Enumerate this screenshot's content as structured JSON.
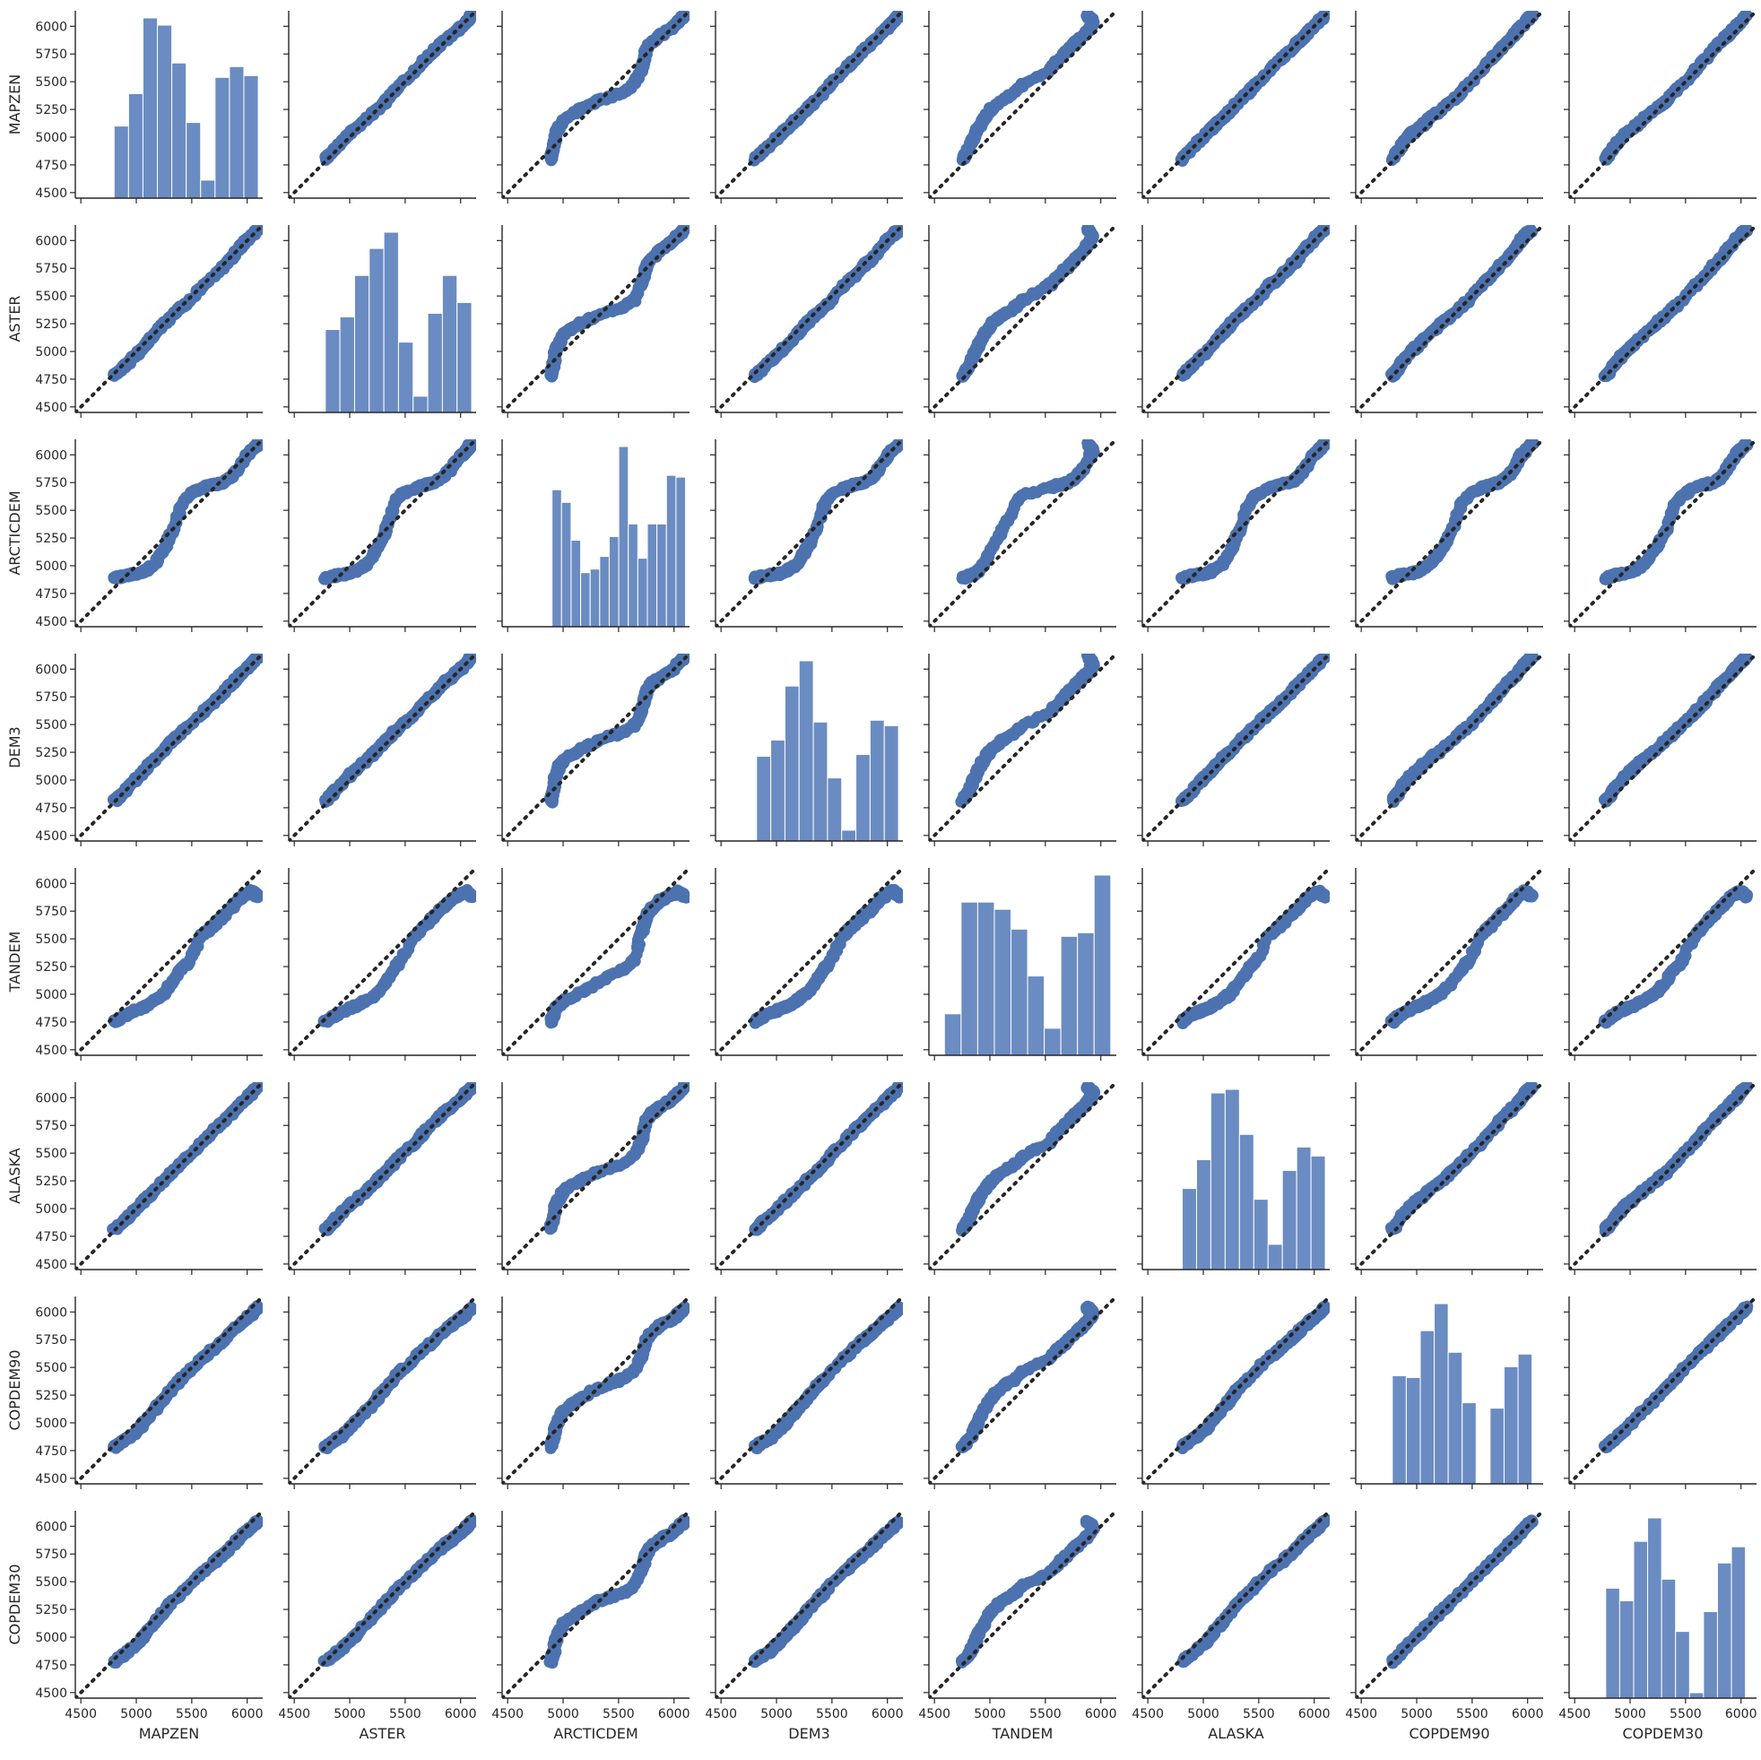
{
  "chart_data": {
    "type": "scatter",
    "layout": "pairplot",
    "variables": [
      "MAPZEN",
      "ASTER",
      "ARCTICDEM",
      "DEM3",
      "TANDEM",
      "ALASKA",
      "COPDEM90",
      "COPDEM30"
    ],
    "xlim": [
      4450,
      6140
    ],
    "ylim": [
      4450,
      6140
    ],
    "ticks": [
      4500,
      4750,
      5000,
      5250,
      5500,
      5750,
      6000
    ],
    "x_ticks": [
      4500,
      5000,
      5500,
      6000
    ],
    "identity_line": true,
    "grid": false,
    "histograms": {
      "MAPZEN": {
        "edges": [
          4800,
          4930,
          5060,
          5190,
          5320,
          5450,
          5580,
          5710,
          5840,
          5970,
          6100
        ],
        "heights": [
          0.4,
          0.58,
          1.0,
          0.96,
          0.75,
          0.42,
          0.1,
          0.67,
          0.73,
          0.68
        ]
      },
      "ASTER": {
        "edges": [
          4780,
          4912,
          5044,
          5176,
          5308,
          5440,
          5572,
          5704,
          5836,
          5968,
          6100
        ],
        "heights": [
          0.46,
          0.53,
          0.76,
          0.91,
          1.0,
          0.39,
          0.09,
          0.55,
          0.76,
          0.61
        ]
      },
      "ARCTICDEM": {
        "edges": [
          4900,
          4986,
          5072,
          5158,
          5244,
          5330,
          5416,
          5502,
          5588,
          5674,
          5760,
          5846,
          5932,
          6018,
          6104
        ],
        "heights": [
          0.76,
          0.69,
          0.48,
          0.3,
          0.32,
          0.39,
          0.5,
          1.0,
          0.57,
          0.38,
          0.57,
          0.57,
          0.84,
          0.83
        ]
      },
      "DEM3": {
        "edges": [
          4820,
          4948,
          5076,
          5204,
          5332,
          5460,
          5588,
          5716,
          5844,
          5972,
          6100
        ],
        "heights": [
          0.47,
          0.56,
          0.86,
          1.0,
          0.66,
          0.35,
          0.06,
          0.48,
          0.67,
          0.64
        ]
      },
      "TANDEM": {
        "edges": [
          4590,
          4740,
          4890,
          5040,
          5190,
          5340,
          5490,
          5640,
          5790,
          5940,
          6090
        ],
        "heights": [
          0.23,
          0.85,
          0.85,
          0.81,
          0.7,
          0.44,
          0.15,
          0.66,
          0.68,
          1.0
        ]
      },
      "ALASKA": {
        "edges": [
          4810,
          4939,
          5068,
          5197,
          5326,
          5455,
          5584,
          5713,
          5842,
          5971,
          6100
        ],
        "heights": [
          0.45,
          0.61,
          0.98,
          1.0,
          0.75,
          0.39,
          0.14,
          0.55,
          0.68,
          0.63
        ]
      },
      "COPDEM90": {
        "edges": [
          4780,
          4906,
          5032,
          5158,
          5284,
          5410,
          5536,
          5662,
          5788,
          5914,
          6040
        ],
        "heights": [
          0.6,
          0.59,
          0.85,
          1.0,
          0.73,
          0.45,
          0.0,
          0.42,
          0.65,
          0.72
        ]
      },
      "COPDEM30": {
        "edges": [
          4780,
          4906,
          5032,
          5158,
          5284,
          5410,
          5536,
          5662,
          5788,
          5914,
          6040
        ],
        "heights": [
          0.61,
          0.54,
          0.87,
          1.0,
          0.66,
          0.37,
          0.03,
          0.48,
          0.75,
          0.84
        ]
      }
    },
    "profiles": {
      "MAPZEN": [
        [
          0,
          4800
        ],
        [
          0.06,
          4860
        ],
        [
          0.12,
          4940
        ],
        [
          0.18,
          5030
        ],
        [
          0.24,
          5090
        ],
        [
          0.3,
          5170
        ],
        [
          0.36,
          5250
        ],
        [
          0.42,
          5320
        ],
        [
          0.48,
          5410
        ],
        [
          0.52,
          5480
        ],
        [
          0.56,
          5590
        ],
        [
          0.62,
          5700
        ],
        [
          0.68,
          5790
        ],
        [
          0.74,
          5860
        ],
        [
          0.8,
          5920
        ],
        [
          0.86,
          5980
        ],
        [
          0.92,
          6040
        ],
        [
          1.0,
          6100
        ]
      ],
      "ASTER": [
        [
          0,
          4780
        ],
        [
          0.06,
          4830
        ],
        [
          0.12,
          4910
        ],
        [
          0.18,
          5000
        ],
        [
          0.24,
          5070
        ],
        [
          0.3,
          5160
        ],
        [
          0.36,
          5250
        ],
        [
          0.42,
          5320
        ],
        [
          0.48,
          5400
        ],
        [
          0.52,
          5460
        ],
        [
          0.56,
          5590
        ],
        [
          0.62,
          5680
        ],
        [
          0.68,
          5770
        ],
        [
          0.74,
          5840
        ],
        [
          0.8,
          5920
        ],
        [
          0.86,
          5990
        ],
        [
          0.92,
          6050
        ],
        [
          1.0,
          6100
        ]
      ],
      "ARCTICDEM": [
        [
          0,
          4890
        ],
        [
          0.06,
          4900
        ],
        [
          0.12,
          4920
        ],
        [
          0.18,
          4930
        ],
        [
          0.24,
          4960
        ],
        [
          0.3,
          5010
        ],
        [
          0.36,
          5150
        ],
        [
          0.42,
          5300
        ],
        [
          0.48,
          5550
        ],
        [
          0.52,
          5640
        ],
        [
          0.56,
          5700
        ],
        [
          0.62,
          5730
        ],
        [
          0.68,
          5750
        ],
        [
          0.74,
          5800
        ],
        [
          0.8,
          5880
        ],
        [
          0.86,
          5980
        ],
        [
          0.92,
          6040
        ],
        [
          1.0,
          6100
        ]
      ],
      "DEM3": [
        [
          0,
          4810
        ],
        [
          0.06,
          4860
        ],
        [
          0.12,
          4950
        ],
        [
          0.18,
          5040
        ],
        [
          0.24,
          5110
        ],
        [
          0.3,
          5190
        ],
        [
          0.36,
          5270
        ],
        [
          0.42,
          5350
        ],
        [
          0.48,
          5430
        ],
        [
          0.52,
          5490
        ],
        [
          0.56,
          5600
        ],
        [
          0.62,
          5700
        ],
        [
          0.68,
          5790
        ],
        [
          0.74,
          5870
        ],
        [
          0.8,
          5930
        ],
        [
          0.86,
          5990
        ],
        [
          0.92,
          6050
        ],
        [
          1.0,
          6110
        ]
      ],
      "TANDEM": [
        [
          0,
          4750
        ],
        [
          0.06,
          4790
        ],
        [
          0.12,
          4830
        ],
        [
          0.18,
          4870
        ],
        [
          0.24,
          4900
        ],
        [
          0.3,
          4950
        ],
        [
          0.36,
          5010
        ],
        [
          0.42,
          5100
        ],
        [
          0.48,
          5230
        ],
        [
          0.52,
          5300
        ],
        [
          0.56,
          5530
        ],
        [
          0.62,
          5620
        ],
        [
          0.68,
          5710
        ],
        [
          0.74,
          5780
        ],
        [
          0.8,
          5850
        ],
        [
          0.86,
          5900
        ],
        [
          0.92,
          5930
        ],
        [
          1.0,
          5880
        ]
      ],
      "ALASKA": [
        [
          0,
          4810
        ],
        [
          0.06,
          4860
        ],
        [
          0.12,
          4940
        ],
        [
          0.18,
          5030
        ],
        [
          0.24,
          5090
        ],
        [
          0.3,
          5170
        ],
        [
          0.36,
          5250
        ],
        [
          0.42,
          5320
        ],
        [
          0.48,
          5410
        ],
        [
          0.52,
          5480
        ],
        [
          0.56,
          5590
        ],
        [
          0.62,
          5700
        ],
        [
          0.68,
          5790
        ],
        [
          0.74,
          5860
        ],
        [
          0.8,
          5920
        ],
        [
          0.86,
          5980
        ],
        [
          0.92,
          6040
        ],
        [
          1.0,
          6100
        ]
      ],
      "COPDEM90": [
        [
          0,
          4780
        ],
        [
          0.06,
          4820
        ],
        [
          0.12,
          4870
        ],
        [
          0.18,
          4950
        ],
        [
          0.24,
          5030
        ],
        [
          0.3,
          5120
        ],
        [
          0.36,
          5220
        ],
        [
          0.42,
          5310
        ],
        [
          0.48,
          5400
        ],
        [
          0.52,
          5470
        ],
        [
          0.56,
          5580
        ],
        [
          0.62,
          5670
        ],
        [
          0.68,
          5750
        ],
        [
          0.74,
          5820
        ],
        [
          0.8,
          5880
        ],
        [
          0.86,
          5930
        ],
        [
          0.92,
          5980
        ],
        [
          1.0,
          6040
        ]
      ],
      "COPDEM30": [
        [
          0,
          4780
        ],
        [
          0.06,
          4820
        ],
        [
          0.12,
          4880
        ],
        [
          0.18,
          4960
        ],
        [
          0.24,
          5040
        ],
        [
          0.3,
          5130
        ],
        [
          0.36,
          5230
        ],
        [
          0.42,
          5320
        ],
        [
          0.48,
          5400
        ],
        [
          0.52,
          5470
        ],
        [
          0.56,
          5580
        ],
        [
          0.62,
          5670
        ],
        [
          0.68,
          5750
        ],
        [
          0.74,
          5820
        ],
        [
          0.8,
          5880
        ],
        [
          0.86,
          5940
        ],
        [
          0.92,
          5990
        ],
        [
          1.0,
          6050
        ]
      ]
    },
    "colors": {
      "points": "#4c72b0",
      "bars": "#6b8cc2",
      "identity": "#262626",
      "axes": "#262626"
    }
  }
}
